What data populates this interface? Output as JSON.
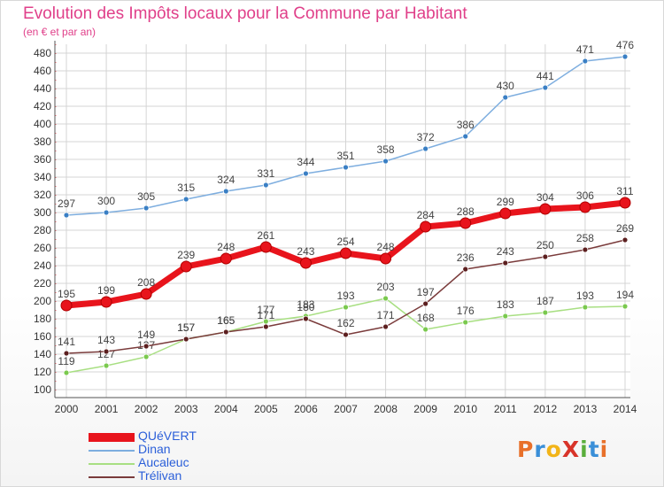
{
  "title": "Evolution des Impôts locaux pour la Commune par Habitant",
  "subtitle": "(en € et par an)",
  "logo": {
    "text": "ProXiti",
    "letter_colors": [
      "#e8702a",
      "#3a8fd8",
      "#f2b418",
      "#d8342a",
      "#5aae3c",
      "#3a8fd8",
      "#e8702a"
    ]
  },
  "chart_data": {
    "type": "line",
    "x": [
      "2000",
      "2001",
      "2002",
      "2003",
      "2004",
      "2005",
      "2006",
      "2007",
      "2008",
      "2009",
      "2010",
      "2011",
      "2012",
      "2013",
      "2014"
    ],
    "ylim": [
      100,
      480
    ],
    "ytick_step": 20,
    "grid": true,
    "legend_position": "bottom-left",
    "series": [
      {
        "name": "QUéVERT",
        "color": "#e8141c",
        "thick": true,
        "values": [
          195,
          199,
          208,
          239,
          248,
          261,
          243,
          254,
          248,
          284,
          288,
          299,
          304,
          306,
          311
        ]
      },
      {
        "name": "Dinan",
        "color": "#7eaedf",
        "marker": "#3a7fc4",
        "values": [
          297,
          300,
          305,
          315,
          324,
          331,
          344,
          351,
          358,
          372,
          386,
          430,
          441,
          471,
          476
        ]
      },
      {
        "name": "Aucaleuc",
        "color": "#a8df82",
        "marker": "#7ac94e",
        "values": [
          119,
          127,
          137,
          157,
          165,
          177,
          183,
          193,
          203,
          168,
          176,
          183,
          187,
          193,
          194
        ]
      },
      {
        "name": "Trélivan",
        "color": "#7a3b3b",
        "marker": "#5c1f1f",
        "values": [
          141,
          143,
          149,
          157,
          165,
          171,
          180,
          162,
          171,
          197,
          236,
          243,
          250,
          258,
          269
        ]
      }
    ]
  }
}
